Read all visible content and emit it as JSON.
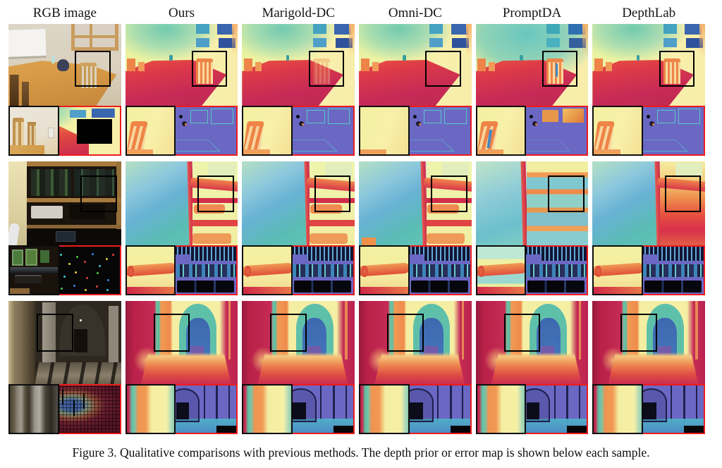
{
  "header": {
    "columns": [
      "RGB image",
      "Ours",
      "Marigold-DC",
      "Omni-DC",
      "PromptDA",
      "DepthLab"
    ]
  },
  "caption": "Figure 3. Qualitative comparisons with previous methods. The depth prior or error map is shown below each sample.",
  "colors": {
    "page_background": "#ffffff",
    "highlight_box": "#000000",
    "inset_border_red": "#ee1c1c",
    "crop_border_black": "#0d0d0d",
    "error_map_base": "#6b68c4",
    "text": "#111111"
  }
}
